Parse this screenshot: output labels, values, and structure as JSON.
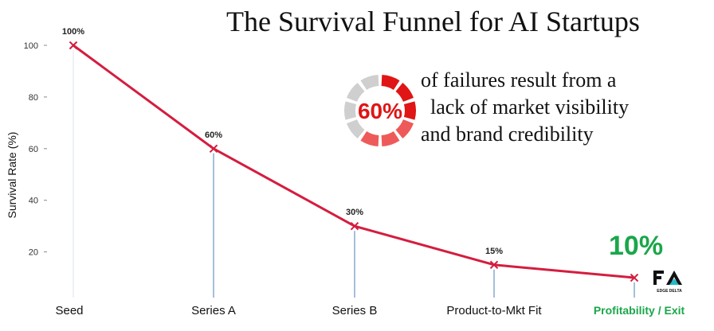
{
  "title": "The Survival Funnel for AI Startups",
  "callout": {
    "percent": "60%",
    "line1": "of failures result from a",
    "line2": "lack of market visibility",
    "line3": "and brand credibility"
  },
  "highlight": {
    "value": "10%",
    "color": "#1aa64a"
  },
  "logo": {
    "text": "EDGE DELTA"
  },
  "colors": {
    "line": "#d41d3f",
    "donut_red": "#e01515",
    "donut_light_red": "#ee5a5a",
    "donut_gray": "#cfcfcf",
    "stem": "#4a7fb8",
    "highlight_label": "#1aa64a"
  },
  "chart_data": {
    "type": "line",
    "categories": [
      "Seed",
      "Series A",
      "Series B",
      "Product-to-Mkt Fit",
      "Profitability / Exit"
    ],
    "values": [
      100,
      60,
      30,
      15,
      10
    ],
    "data_labels": [
      "100%",
      "60%",
      "30%",
      "15%",
      ""
    ],
    "ylabel": "Survival Rate (%)",
    "xlabel": "",
    "yticks": [
      20,
      40,
      60,
      80,
      100
    ],
    "ylim": [
      0,
      105
    ],
    "grid": false,
    "highlight_category": "Profitability / Exit"
  }
}
